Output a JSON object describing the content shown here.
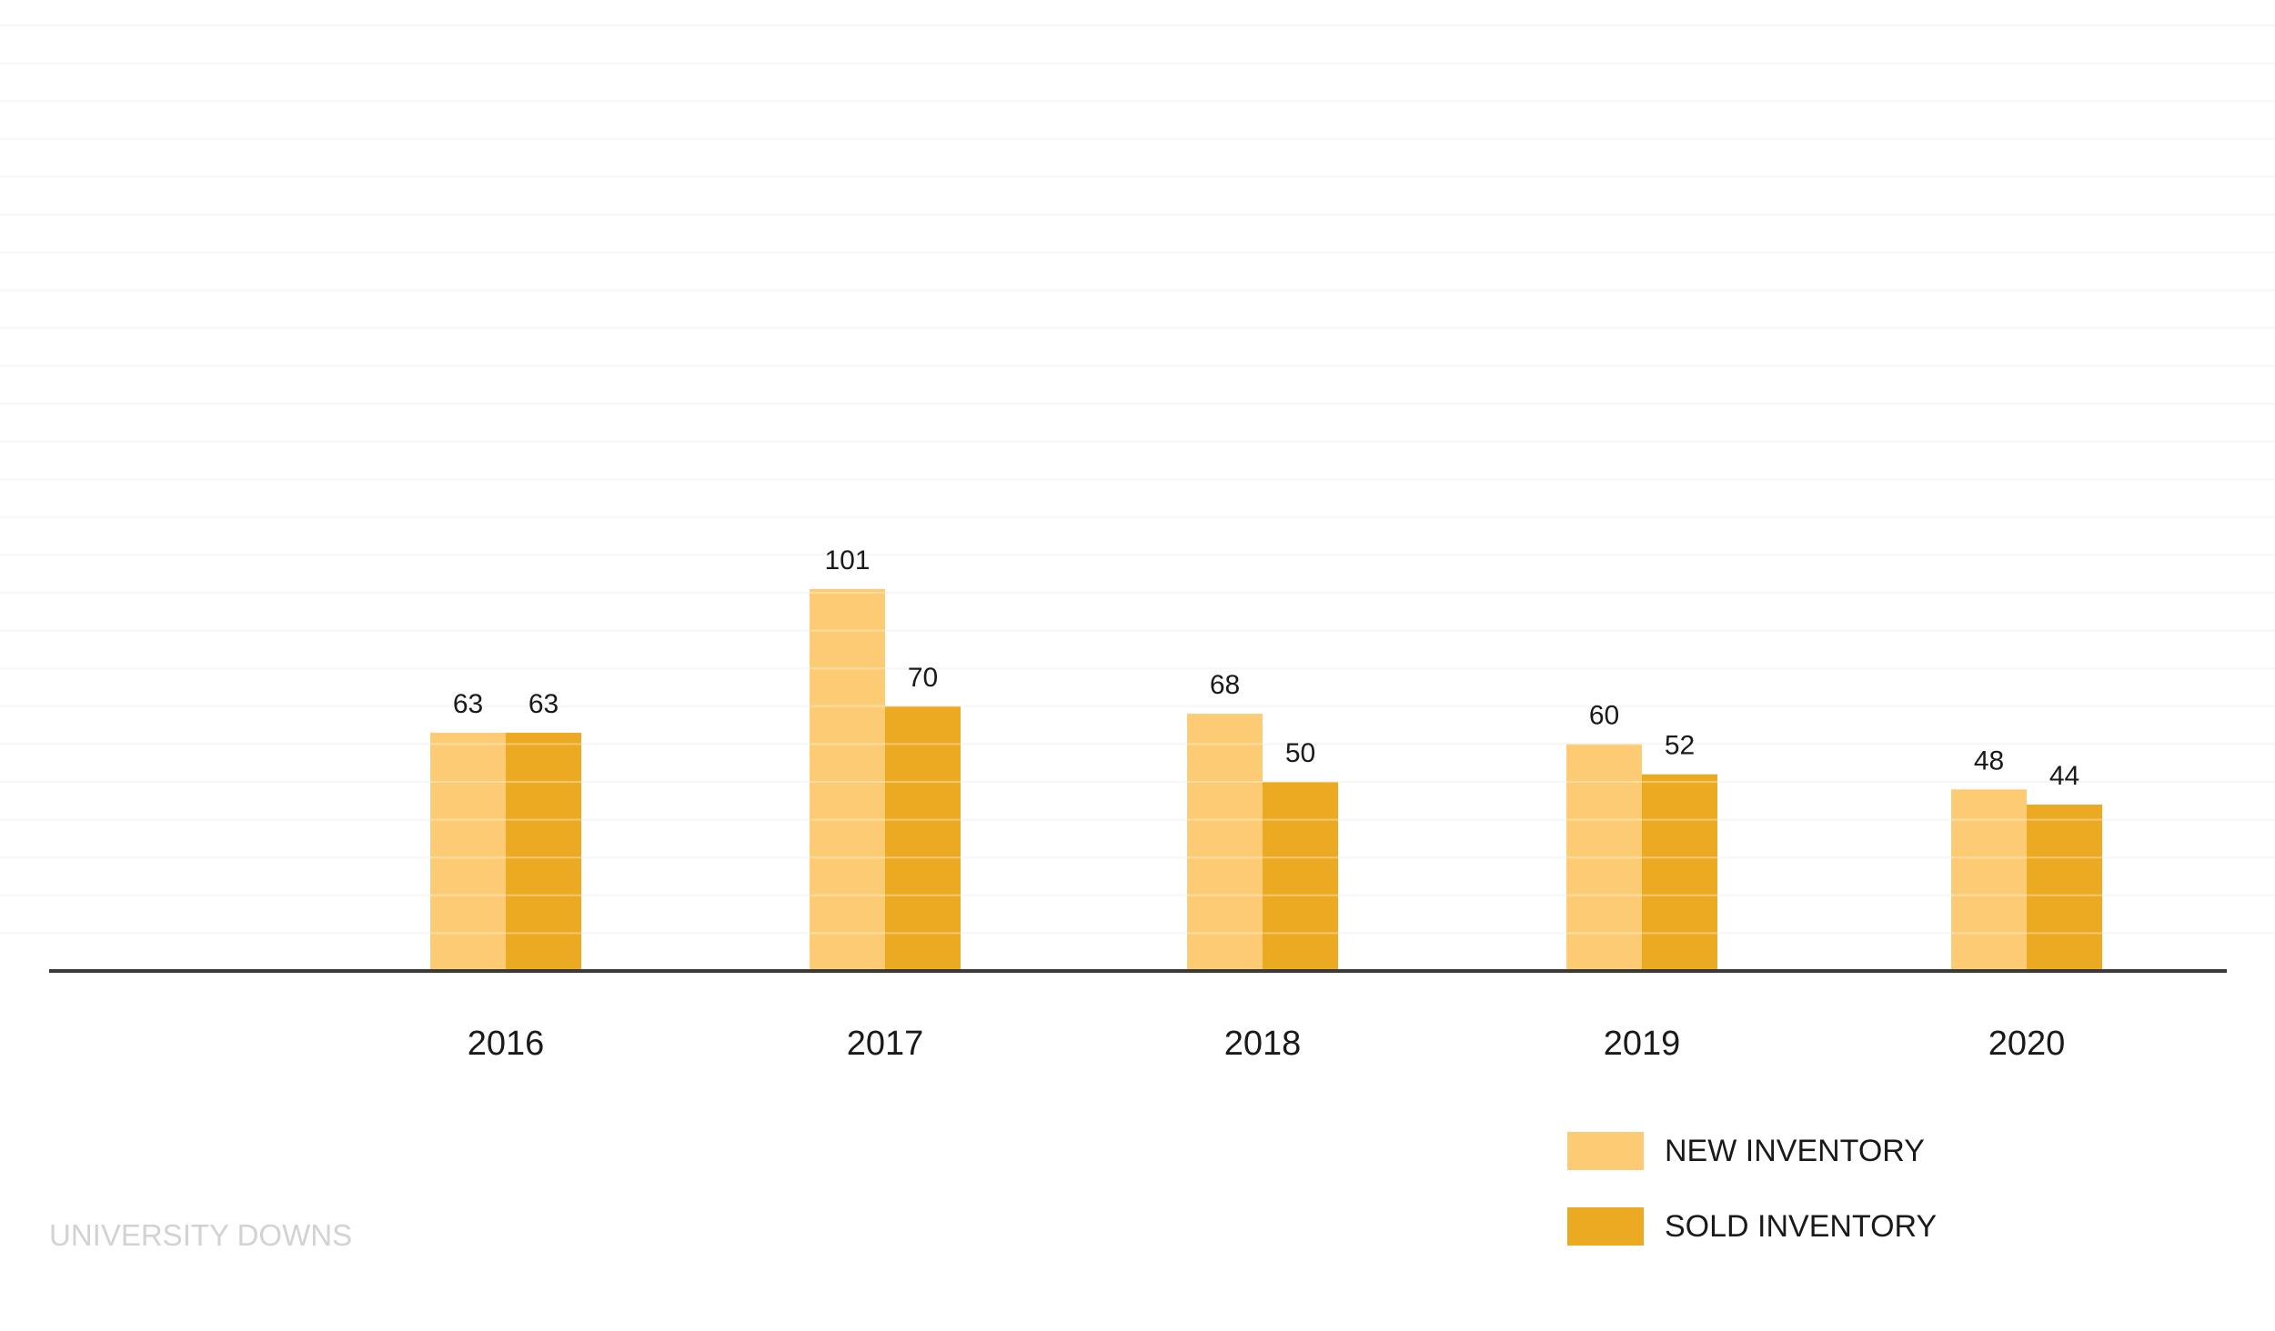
{
  "chart_data": {
    "type": "bar",
    "categories": [
      "2016",
      "2017",
      "2018",
      "2019",
      "2020"
    ],
    "series": [
      {
        "name": "NEW INVENTORY",
        "values": [
          63,
          101,
          68,
          60,
          48
        ],
        "color": "#FCCB73"
      },
      {
        "name": "SOLD INVENTORY",
        "values": [
          63,
          70,
          50,
          52,
          44
        ],
        "color": "#EBAA22"
      }
    ],
    "ylim": [
      0,
      250
    ],
    "grid": true,
    "legend_position": "bottom-right",
    "axis_color": "#3a3a3a",
    "grid_color": "#f1f1f1",
    "text_color": "#1a1a1a"
  },
  "watermark": {
    "text": "UNIVERSITY DOWNS",
    "color": "#d2d2d2"
  }
}
